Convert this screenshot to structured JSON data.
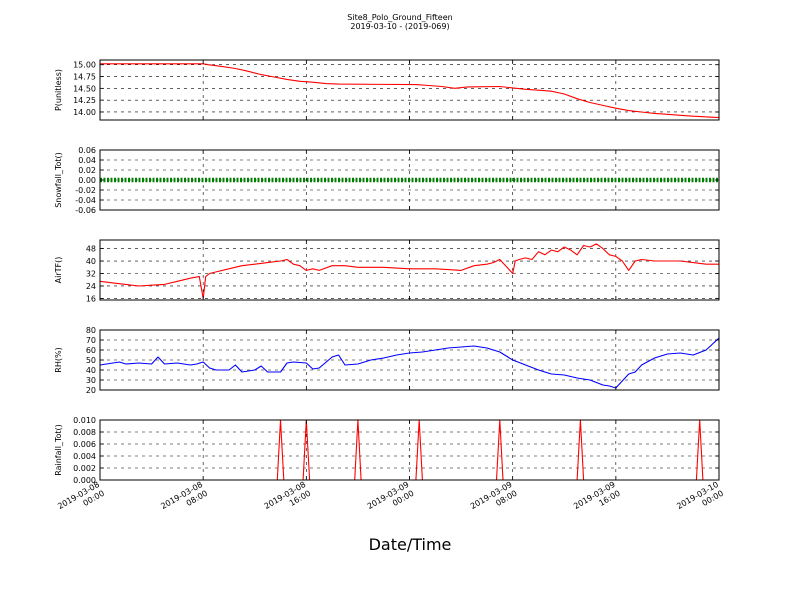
{
  "figure": {
    "title": "Site8_Polo_Ground_Fifteen",
    "subtitle": "2019-03-10 - (2019-069)",
    "xlabel": "Date/Time",
    "x_ticks": [
      [
        "2019-03-08",
        "00:00"
      ],
      [
        "2019-03-08",
        "08:00"
      ],
      [
        "2019-03-08",
        "16:00"
      ],
      [
        "2019-03-09",
        "00:00"
      ],
      [
        "2019-03-09",
        "08:00"
      ],
      [
        "2019-03-09",
        "16:00"
      ],
      [
        "2019-03-10",
        "00:00"
      ]
    ]
  },
  "chart_data": [
    {
      "type": "line",
      "ylabel": "P(unitless)",
      "color": "#ff0000",
      "ylim": [
        13.83,
        15.1
      ],
      "yticks": [
        "14.00",
        "14.25",
        "14.50",
        "14.75",
        "15.00"
      ],
      "ytick_values": [
        14.0,
        14.25,
        14.5,
        14.75,
        15.0
      ],
      "x": [
        0,
        8,
        8.4,
        9.5,
        10.5,
        11.5,
        12.5,
        13.5,
        14.5,
        15.5,
        16.5,
        17.5,
        18.5,
        24.5,
        25.5,
        26.5,
        27.5,
        28.5,
        31,
        32,
        33,
        34,
        35,
        36,
        37,
        38,
        39,
        40,
        41,
        42,
        43,
        44,
        45,
        46,
        48
      ],
      "values": [
        15.02,
        15.02,
        15.0,
        14.96,
        14.92,
        14.86,
        14.79,
        14.74,
        14.69,
        14.65,
        14.63,
        14.6,
        14.59,
        14.58,
        14.56,
        14.54,
        14.5,
        14.53,
        14.54,
        14.51,
        14.48,
        14.46,
        14.44,
        14.38,
        14.28,
        14.2,
        14.14,
        14.08,
        14.03,
        14.0,
        13.97,
        13.95,
        13.93,
        13.91,
        13.88
      ]
    },
    {
      "type": "line",
      "ylabel": "Snowfall_Tot()",
      "color": "#008000",
      "ylim": [
        -0.06,
        0.06
      ],
      "yticks": [
        "-0.06",
        "-0.04",
        "-0.02",
        "0.00",
        "0.02",
        "0.04",
        "0.06"
      ],
      "ytick_values": [
        -0.06,
        -0.04,
        -0.02,
        0.0,
        0.02,
        0.04,
        0.06
      ],
      "x": [
        0,
        48
      ],
      "values": [
        0,
        0
      ]
    },
    {
      "type": "line",
      "ylabel": "AirTF()",
      "color": "#ff0000",
      "ylim": [
        15,
        53.5
      ],
      "yticks": [
        "16",
        "24",
        "32",
        "40",
        "48"
      ],
      "ytick_values": [
        16,
        24,
        32,
        40,
        48
      ],
      "x": [
        0,
        1,
        2,
        3,
        4,
        5,
        6,
        7,
        7.7,
        8,
        8.2,
        8.5,
        9,
        10,
        11,
        12,
        13,
        14,
        14.5,
        15,
        15.5,
        16,
        16.5,
        17,
        18,
        19,
        20,
        21,
        22,
        23,
        24,
        25,
        26,
        27,
        28,
        29,
        30,
        30.5,
        31,
        32,
        32.2,
        32.5,
        33,
        33.5,
        34,
        34.5,
        35,
        35.5,
        36,
        36.5,
        37,
        37.5,
        38,
        38.5,
        39,
        39.5,
        40,
        40.5,
        41,
        41.5,
        42,
        43,
        44,
        45,
        46,
        47,
        48
      ],
      "values": [
        27,
        26,
        25,
        24,
        24.5,
        25,
        27,
        29,
        30,
        16,
        30,
        32,
        33,
        35,
        37,
        38,
        39,
        40,
        41,
        38,
        37,
        34,
        35,
        34,
        37,
        37,
        36,
        36,
        36,
        35.5,
        35,
        35,
        35,
        34.5,
        34,
        37,
        38,
        39,
        41,
        32,
        40,
        41,
        42,
        41,
        46,
        44,
        47,
        46,
        49,
        47,
        44,
        50,
        49,
        51,
        48,
        44,
        43,
        40,
        34,
        40,
        41,
        40,
        40,
        40,
        39,
        38,
        38
      ]
    },
    {
      "type": "line",
      "ylabel": "RH(%)",
      "color": "#0000ff",
      "ylim": [
        20,
        80
      ],
      "yticks": [
        "20",
        "30",
        "40",
        "50",
        "60",
        "70",
        "80"
      ],
      "ytick_values": [
        20,
        30,
        40,
        50,
        60,
        70,
        80
      ],
      "x": [
        0,
        1,
        1.5,
        2,
        3,
        4,
        4.5,
        5,
        6,
        7,
        7.5,
        8,
        8.5,
        9,
        10,
        10.5,
        11,
        12,
        12.5,
        13,
        14,
        14.5,
        15,
        16,
        16.5,
        17,
        18,
        18.5,
        19,
        20,
        21,
        22,
        23,
        24,
        25,
        26,
        27,
        28,
        29,
        30,
        31,
        32,
        33,
        34,
        35,
        36,
        37,
        38,
        39,
        39.5,
        40,
        41,
        41.5,
        42,
        43,
        44,
        45,
        46,
        47,
        48
      ],
      "values": [
        45,
        47,
        48,
        46,
        47,
        46,
        53,
        46,
        47,
        45,
        46,
        48,
        42,
        40,
        40,
        45,
        38,
        40,
        44,
        38,
        38,
        47,
        48,
        47,
        41,
        42,
        53,
        55,
        45,
        46,
        50,
        52,
        55,
        57,
        58,
        60,
        62,
        63,
        64,
        62,
        58,
        50,
        45,
        40,
        36,
        35,
        32,
        30,
        25,
        24,
        22,
        36,
        38,
        45,
        52,
        56,
        57,
        55,
        60,
        72
      ]
    },
    {
      "type": "line",
      "ylabel": "Rainfall_Tot()",
      "color": "#ff0000",
      "ylim": [
        0,
        0.01
      ],
      "yticks": [
        "0.000",
        "0.002",
        "0.004",
        "0.006",
        "0.008",
        "0.010"
      ],
      "ytick_values": [
        0.0,
        0.002,
        0.004,
        0.006,
        0.008,
        0.01
      ],
      "x": [
        0,
        13.75,
        14,
        14.25,
        15.75,
        16,
        16.25,
        19.75,
        20,
        20.25,
        24.5,
        24.75,
        25,
        30.75,
        31,
        31.25,
        37,
        37.25,
        37.5,
        46.25,
        46.5,
        46.75,
        48
      ],
      "values": [
        0,
        0,
        0.01,
        0,
        0,
        0.01,
        0,
        0,
        0.01,
        0,
        0,
        0.01,
        0,
        0,
        0.01,
        0,
        0,
        0.01,
        0,
        0,
        0.01,
        0,
        0
      ]
    }
  ]
}
